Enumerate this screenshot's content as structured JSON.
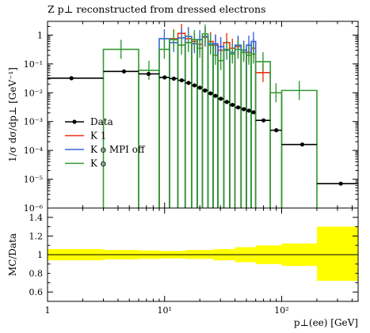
{
  "chart_data": [
    {
      "type": "line",
      "title": "Z p⊥ reconstructed from dressed electrons",
      "xlabel": "p⊥(ee) [GeV]",
      "ylabel": "1/σ dσ/dp⊥ [GeV⁻¹]",
      "x_scale": "log",
      "y_scale": "log",
      "xlim": [
        1,
        450
      ],
      "ylim": [
        1e-06,
        3
      ],
      "x_ticks": [
        "1",
        "10¹",
        "10²"
      ],
      "y_ticks": [
        "10⁻⁶",
        "10⁻⁵",
        "10⁻⁴",
        "10⁻³",
        "10⁻²",
        "10⁻¹",
        "1"
      ],
      "legend_position": "left",
      "series": [
        {
          "name": "Data",
          "color": "#000000",
          "style": "points-with-xerr",
          "bins": [
            {
              "x0": 1.0,
              "x1": 3.0,
              "x": 1.6,
              "y": 0.032
            },
            {
              "x0": 3.0,
              "x1": 6.0,
              "x": 4.5,
              "y": 0.055
            },
            {
              "x0": 6.0,
              "x1": 9.0,
              "x": 7.3,
              "y": 0.045
            },
            {
              "x0": 9.0,
              "x1": 11.0,
              "x": 10.0,
              "y": 0.034
            },
            {
              "x0": 11.0,
              "x1": 13.0,
              "x": 12.0,
              "y": 0.031
            },
            {
              "x0": 13.0,
              "x1": 15.0,
              "x": 14.0,
              "y": 0.027
            },
            {
              "x0": 15.0,
              "x1": 17.0,
              "x": 16.0,
              "y": 0.022
            },
            {
              "x0": 17.0,
              "x1": 19.0,
              "x": 18.0,
              "y": 0.018
            },
            {
              "x0": 19.0,
              "x1": 21.0,
              "x": 20.0,
              "y": 0.015
            },
            {
              "x0": 21.0,
              "x1": 23.5,
              "x": 22.2,
              "y": 0.012
            },
            {
              "x0": 23.5,
              "x1": 26.0,
              "x": 24.7,
              "y": 0.0095
            },
            {
              "x0": 26.0,
              "x1": 28.5,
              "x": 27.2,
              "y": 0.0078
            },
            {
              "x0": 28.5,
              "x1": 32.0,
              "x": 30.2,
              "y": 0.0062
            },
            {
              "x0": 32.0,
              "x1": 36.0,
              "x": 34.0,
              "y": 0.0048
            },
            {
              "x0": 36.0,
              "x1": 40.0,
              "x": 38.0,
              "y": 0.0038
            },
            {
              "x0": 40.0,
              "x1": 45.0,
              "x": 42.5,
              "y": 0.0031
            },
            {
              "x0": 45.0,
              "x1": 50.0,
              "x": 47.5,
              "y": 0.0027
            },
            {
              "x0": 50.0,
              "x1": 55.0,
              "x": 52.5,
              "y": 0.0024
            },
            {
              "x0": 55.0,
              "x1": 60.0,
              "x": 57.5,
              "y": 0.0021
            },
            {
              "x0": 60.0,
              "x1": 80.0,
              "x": 70.0,
              "y": 0.0011
            },
            {
              "x0": 80.0,
              "x1": 100.0,
              "x": 90.0,
              "y": 0.0005
            },
            {
              "x0": 100.0,
              "x1": 200.0,
              "x": 150.0,
              "y": 0.00016
            },
            {
              "x0": 200.0,
              "x1": 450.0,
              "x": 320.0,
              "y": 7e-06
            }
          ]
        },
        {
          "name": "K 1",
          "color": "#ee3311",
          "style": "histogram",
          "bins": [
            {
              "x0": 11.0,
              "x1": 13.0,
              "y": 0.75
            },
            {
              "x0": 13.0,
              "x1": 15.0,
              "y": 1.15
            },
            {
              "x0": 15.0,
              "x1": 17.0,
              "y": 0.75
            },
            {
              "x0": 17.0,
              "x1": 19.0,
              "y": 0.6
            },
            {
              "x0": 19.0,
              "x1": 21.0,
              "y": 0.48
            },
            {
              "x0": 21.0,
              "x1": 23.5,
              "y": 0.85
            },
            {
              "x0": 23.5,
              "x1": 26.0,
              "y": 0.6
            },
            {
              "x0": 26.0,
              "x1": 28.5,
              "y": 0.45
            },
            {
              "x0": 28.5,
              "x1": 32.0,
              "y": 0.3
            },
            {
              "x0": 32.0,
              "x1": 36.0,
              "y": 0.55
            },
            {
              "x0": 36.0,
              "x1": 40.0,
              "y": 0.35
            },
            {
              "x0": 40.0,
              "x1": 45.0,
              "y": 0.4
            },
            {
              "x0": 45.0,
              "x1": 50.0,
              "y": 0.3
            },
            {
              "x0": 50.0,
              "x1": 55.0,
              "y": 0.25
            },
            {
              "x0": 55.0,
              "x1": 60.0,
              "y": 0.35
            },
            {
              "x0": 60.0,
              "x1": 80.0,
              "y": 0.05
            }
          ]
        },
        {
          "name": "K o MPI off",
          "color": "#3366dd",
          "style": "histogram",
          "bins": [
            {
              "x0": 9.0,
              "x1": 11.0,
              "y": 0.75
            },
            {
              "x0": 11.0,
              "x1": 13.0,
              "y": 0.55
            },
            {
              "x0": 13.0,
              "x1": 15.0,
              "y": 0.8
            },
            {
              "x0": 15.0,
              "x1": 17.0,
              "y": 0.9
            },
            {
              "x0": 17.0,
              "x1": 19.0,
              "y": 0.5
            },
            {
              "x0": 19.0,
              "x1": 21.0,
              "y": 0.7
            },
            {
              "x0": 21.0,
              "x1": 23.5,
              "y": 0.9
            },
            {
              "x0": 23.5,
              "x1": 26.0,
              "y": 0.5
            },
            {
              "x0": 26.0,
              "x1": 28.5,
              "y": 0.5
            },
            {
              "x0": 28.5,
              "x1": 32.0,
              "y": 0.4
            },
            {
              "x0": 32.0,
              "x1": 36.0,
              "y": 0.3
            },
            {
              "x0": 36.0,
              "x1": 40.0,
              "y": 0.25
            },
            {
              "x0": 40.0,
              "x1": 45.0,
              "y": 0.45
            },
            {
              "x0": 45.0,
              "x1": 50.0,
              "y": 0.3
            },
            {
              "x0": 50.0,
              "x1": 55.0,
              "y": 0.45
            },
            {
              "x0": 55.0,
              "x1": 60.0,
              "y": 0.6
            }
          ]
        },
        {
          "name": "K o",
          "color": "#339933",
          "style": "histogram",
          "bins": [
            {
              "x0": 3.0,
              "x1": 6.0,
              "y": 0.32
            },
            {
              "x0": 6.0,
              "x1": 9.0,
              "y": 0.06
            },
            {
              "x0": 9.0,
              "x1": 11.0,
              "y": 0.32
            },
            {
              "x0": 11.0,
              "x1": 13.0,
              "y": 0.7
            },
            {
              "x0": 13.0,
              "x1": 15.0,
              "y": 0.45
            },
            {
              "x0": 15.0,
              "x1": 17.0,
              "y": 0.55
            },
            {
              "x0": 17.0,
              "x1": 19.0,
              "y": 0.7
            },
            {
              "x0": 19.0,
              "x1": 21.0,
              "y": 0.35
            },
            {
              "x0": 21.0,
              "x1": 23.5,
              "y": 1.1
            },
            {
              "x0": 23.5,
              "x1": 26.0,
              "y": 0.45
            },
            {
              "x0": 26.0,
              "x1": 28.5,
              "y": 0.2
            },
            {
              "x0": 28.5,
              "x1": 32.0,
              "y": 0.13
            },
            {
              "x0": 32.0,
              "x1": 36.0,
              "y": 0.32
            },
            {
              "x0": 36.0,
              "x1": 40.0,
              "y": 0.22
            },
            {
              "x0": 40.0,
              "x1": 45.0,
              "y": 0.32
            },
            {
              "x0": 45.0,
              "x1": 50.0,
              "y": 0.25
            },
            {
              "x0": 50.0,
              "x1": 55.0,
              "y": 0.2
            },
            {
              "x0": 55.0,
              "x1": 60.0,
              "y": 0.22
            },
            {
              "x0": 60.0,
              "x1": 80.0,
              "y": 0.12
            },
            {
              "x0": 80.0,
              "x1": 100.0,
              "y": 0.01
            },
            {
              "x0": 100.0,
              "x1": 200.0,
              "y": 0.012
            }
          ]
        }
      ]
    },
    {
      "type": "line",
      "ylabel": "MC/Data",
      "xlabel": "p⊥(ee) [GeV]",
      "x_scale": "log",
      "xlim": [
        1,
        450
      ],
      "ylim": [
        0.5,
        1.5
      ],
      "y_ticks": [
        "0.6",
        "0.8",
        "1",
        "1.2",
        "1.4"
      ],
      "reference_line": 1.0,
      "uncertainty_band": {
        "color": "#ffff00",
        "bins": [
          {
            "x0": 1.0,
            "x1": 3.0,
            "lo": 0.94,
            "hi": 1.06
          },
          {
            "x0": 3.0,
            "x1": 6.0,
            "lo": 0.95,
            "hi": 1.05
          },
          {
            "x0": 6.0,
            "x1": 9.0,
            "lo": 0.955,
            "hi": 1.045
          },
          {
            "x0": 9.0,
            "x1": 15.0,
            "lo": 0.96,
            "hi": 1.04
          },
          {
            "x0": 15.0,
            "x1": 26.0,
            "lo": 0.955,
            "hi": 1.05
          },
          {
            "x0": 26.0,
            "x1": 40.0,
            "lo": 0.94,
            "hi": 1.06
          },
          {
            "x0": 40.0,
            "x1": 60.0,
            "lo": 0.92,
            "hi": 1.08
          },
          {
            "x0": 60.0,
            "x1": 100.0,
            "lo": 0.9,
            "hi": 1.1
          },
          {
            "x0": 100.0,
            "x1": 200.0,
            "lo": 0.88,
            "hi": 1.12
          },
          {
            "x0": 200.0,
            "x1": 450.0,
            "lo": 0.72,
            "hi": 1.3
          }
        ]
      }
    }
  ]
}
